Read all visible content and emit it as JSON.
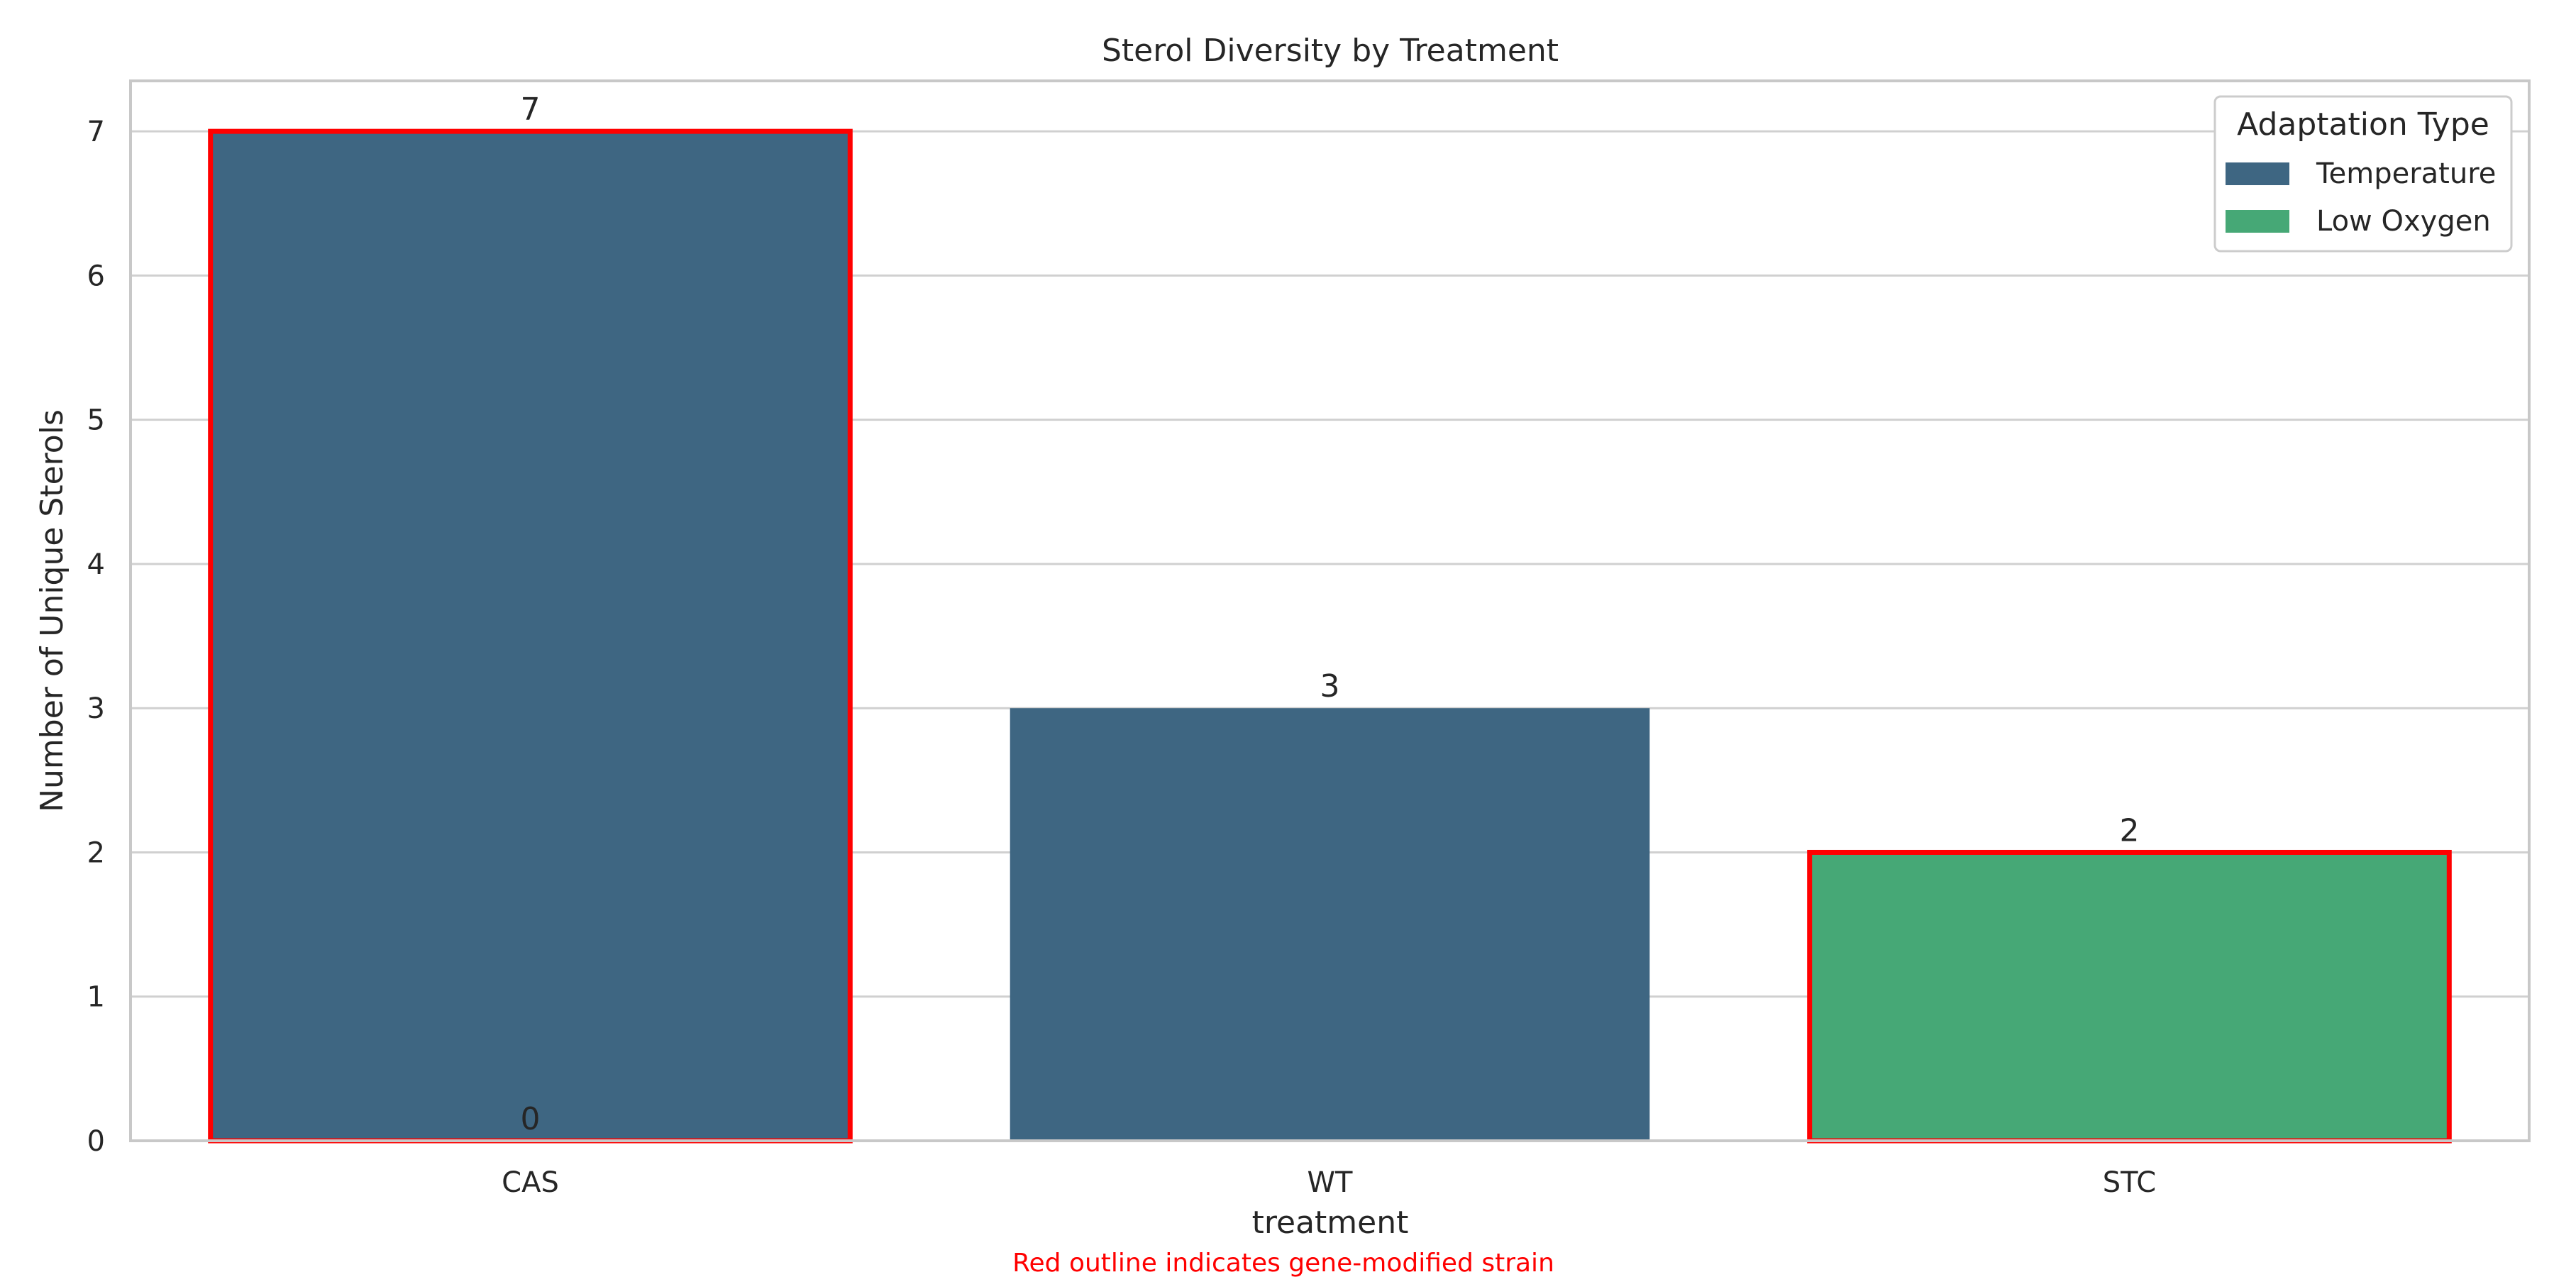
{
  "chart_data": {
    "type": "bar",
    "title": "Sterol Diversity by Treatment",
    "xlabel": "treatment",
    "ylabel": "Number of Unique Sterols",
    "categories": [
      "CAS",
      "WT",
      "STC"
    ],
    "values": [
      7,
      3,
      2
    ],
    "bar_types": [
      "Temperature",
      "Temperature",
      "Low Oxygen"
    ],
    "gene_modified": [
      true,
      false,
      true
    ],
    "ylim": [
      0,
      7.35
    ],
    "yticks": [
      0,
      1,
      2,
      3,
      4,
      5,
      6,
      7
    ],
    "grid": true,
    "extra_labels": [
      {
        "category": "CAS",
        "value": 0,
        "text": "0"
      }
    ],
    "legend": {
      "title": "Adaptation Type",
      "placement": "top-right",
      "entries": [
        {
          "label": "Temperature",
          "color": "#3e6682"
        },
        {
          "label": "Low Oxygen",
          "color": "#46a876"
        }
      ]
    },
    "footnote": "Red outline indicates gene-modified strain",
    "colors": {
      "temperature": "#3e6682",
      "low_oxygen": "#46a876",
      "outline": "#ff0000",
      "grid": "#d0d0d0",
      "axes": "#c8c8c8",
      "footnote": "#ff0000"
    }
  }
}
